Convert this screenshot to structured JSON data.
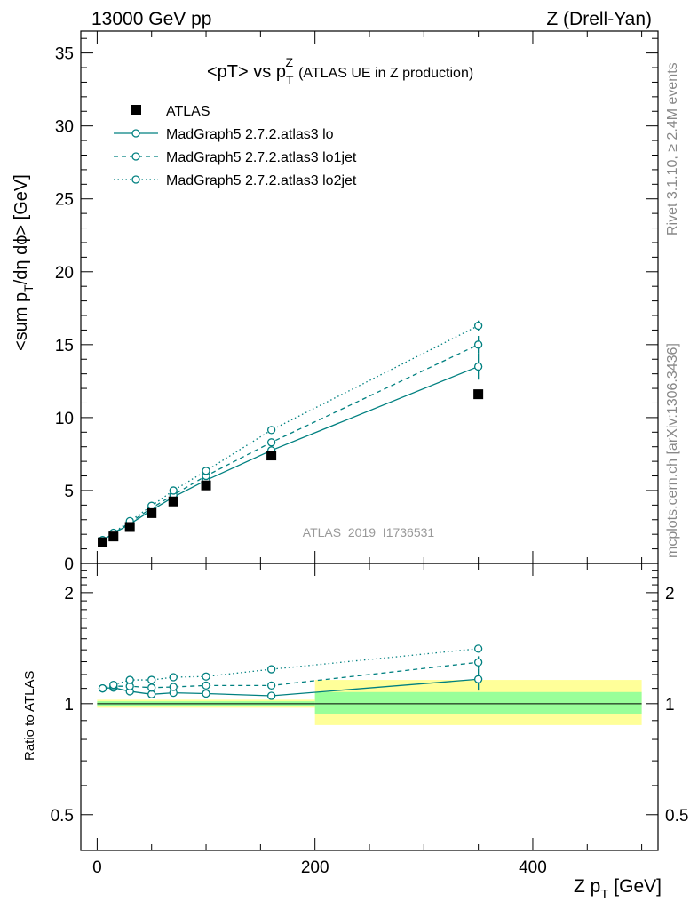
{
  "header": {
    "left": "13000 GeV pp",
    "right": "Z (Drell-Yan)"
  },
  "side_labels": {
    "rivet": "Rivet 3.1.10, ≥ 2.4M events",
    "mcplots": "mcplots.cern.ch [arXiv:1306.3436]"
  },
  "watermark": "ATLAS_2019_I1736531",
  "chart_data": [
    {
      "type": "line",
      "title_main": "<pT> vs p",
      "title_sub": "T",
      "title_sup": "Z",
      "title_rest": "(ATLAS UE in Z production)",
      "ylabel_parts": [
        "<sum p",
        "T",
        "/dη dϕ> [GeV]"
      ],
      "ylim": [
        0,
        36.5
      ],
      "xlim": [
        -15,
        515
      ],
      "y_ticks": [
        0,
        5,
        10,
        15,
        20,
        25,
        30,
        35
      ],
      "y_tick_labels": [
        "0",
        "5",
        "10",
        "15",
        "20",
        "25",
        "30",
        "35"
      ],
      "legend_position": "top-left",
      "data": {
        "name": "ATLAS",
        "x": [
          5,
          15,
          30,
          50,
          70,
          100,
          160,
          350
        ],
        "y": [
          1.45,
          1.85,
          2.5,
          3.45,
          4.25,
          5.35,
          7.4,
          11.6
        ]
      },
      "series": [
        {
          "name": "MadGraph5 2.7.2.atlas3 lo",
          "style": "solid",
          "x": [
            5,
            15,
            30,
            50,
            70,
            100,
            160,
            350
          ],
          "y": [
            1.6,
            2.05,
            2.7,
            3.65,
            4.55,
            5.7,
            7.75,
            13.5
          ],
          "err": [
            0.05,
            0.05,
            0.05,
            0.1,
            0.1,
            0.1,
            0.15,
            0.9
          ]
        },
        {
          "name": "MadGraph5 2.7.2.atlas3 lo1jet",
          "style": "dashed",
          "x": [
            5,
            15,
            30,
            50,
            70,
            100,
            160,
            350
          ],
          "y": [
            1.6,
            2.07,
            2.8,
            3.8,
            4.7,
            6.0,
            8.3,
            15.0
          ],
          "err": [
            0.05,
            0.05,
            0.05,
            0.1,
            0.1,
            0.1,
            0.15,
            0.6
          ]
        },
        {
          "name": "MadGraph5 2.7.2.atlas3 lo2jet",
          "style": "dotted",
          "x": [
            5,
            15,
            30,
            50,
            70,
            100,
            160,
            350
          ],
          "y": [
            1.6,
            2.1,
            2.9,
            3.95,
            5.0,
            6.35,
            9.15,
            16.3
          ],
          "err": [
            0.05,
            0.05,
            0.05,
            0.1,
            0.1,
            0.1,
            0.15,
            0.35
          ]
        }
      ]
    },
    {
      "type": "line",
      "ylabel": "Ratio to ATLAS",
      "xlabel_parts": [
        "Z p",
        "T",
        " [GeV]"
      ],
      "ylim": [
        0.4,
        2.4
      ],
      "log_y": true,
      "xlim": [
        -15,
        515
      ],
      "x_ticks": [
        0,
        200,
        400
      ],
      "x_tick_labels": [
        "0",
        "200",
        "400"
      ],
      "y_ticks": [
        0.5,
        1,
        2
      ],
      "y_tick_labels": [
        "0.5",
        "1",
        "2"
      ],
      "bands": [
        {
          "x_from": 0,
          "x_to": 200,
          "stat_lo": 0.985,
          "stat_hi": 1.015,
          "tot_lo": 0.975,
          "tot_hi": 1.025
        },
        {
          "x_from": 200,
          "x_to": 500,
          "stat_lo": 0.94,
          "stat_hi": 1.075,
          "tot_lo": 0.875,
          "tot_hi": 1.16
        }
      ],
      "series": [
        {
          "name": "lo",
          "style": "solid",
          "x": [
            5,
            15,
            30,
            50,
            70,
            100,
            160,
            350
          ],
          "y": [
            1.1,
            1.105,
            1.08,
            1.06,
            1.07,
            1.065,
            1.05,
            1.165
          ],
          "err": [
            0.02,
            0.02,
            0.02,
            0.02,
            0.02,
            0.02,
            0.02,
            0.08
          ]
        },
        {
          "name": "lo1jet",
          "style": "dashed",
          "x": [
            5,
            15,
            30,
            50,
            70,
            100,
            160,
            350
          ],
          "y": [
            1.1,
            1.115,
            1.115,
            1.105,
            1.11,
            1.12,
            1.12,
            1.295
          ],
          "err": [
            0.02,
            0.02,
            0.02,
            0.02,
            0.02,
            0.02,
            0.02,
            0.05
          ]
        },
        {
          "name": "lo2jet",
          "style": "dotted",
          "x": [
            5,
            15,
            30,
            50,
            70,
            100,
            160,
            350
          ],
          "y": [
            1.1,
            1.125,
            1.16,
            1.16,
            1.18,
            1.185,
            1.24,
            1.41
          ],
          "err": [
            0.02,
            0.02,
            0.02,
            0.02,
            0.02,
            0.02,
            0.02,
            0.03
          ]
        }
      ]
    }
  ],
  "colors": {
    "mc": "#008080",
    "data": "#000000",
    "stat_band": "#99ff99",
    "tot_band": "#ffff99"
  }
}
